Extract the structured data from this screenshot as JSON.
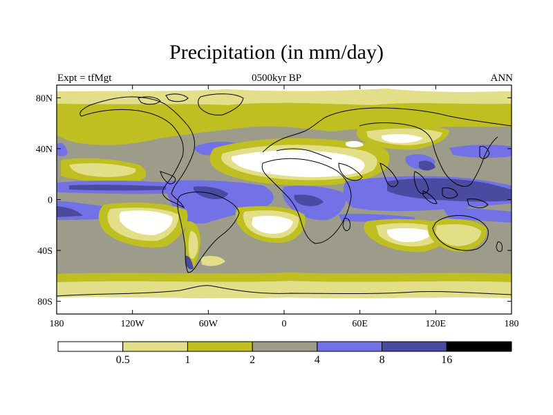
{
  "title": "Precipitation (in mm/day)",
  "subtitle_left": "Expt = tfMgt",
  "subtitle_center": "0500kyr BP",
  "subtitle_right": "ANN",
  "lat_ticks": [
    {
      "value": 80,
      "label": "80N"
    },
    {
      "value": 40,
      "label": "40N"
    },
    {
      "value": 0,
      "label": "0"
    },
    {
      "value": -40,
      "label": "40S"
    },
    {
      "value": -80,
      "label": "80S"
    }
  ],
  "lon_ticks": [
    {
      "value": -180,
      "label": "180"
    },
    {
      "value": -120,
      "label": "120W"
    },
    {
      "value": -60,
      "label": "60W"
    },
    {
      "value": 0,
      "label": "0"
    },
    {
      "value": 60,
      "label": "60E"
    },
    {
      "value": 120,
      "label": "120E"
    },
    {
      "value": 180,
      "label": "180"
    }
  ],
  "colorbar": {
    "colors": [
      "#ffffff",
      "#e2df88",
      "#c0bf22",
      "#9d9c8a",
      "#7272e6",
      "#4a4aa0",
      "#000000"
    ],
    "labels": [
      "0.5",
      "1",
      "2",
      "4",
      "8",
      "16"
    ]
  },
  "palette": {
    "white": "#ffffff",
    "pale_yellow": "#e2df88",
    "olive": "#c0bf22",
    "gray": "#9d9c8a",
    "blue": "#7272e6",
    "dark_blue": "#4a4aa0",
    "black": "#000000"
  }
}
